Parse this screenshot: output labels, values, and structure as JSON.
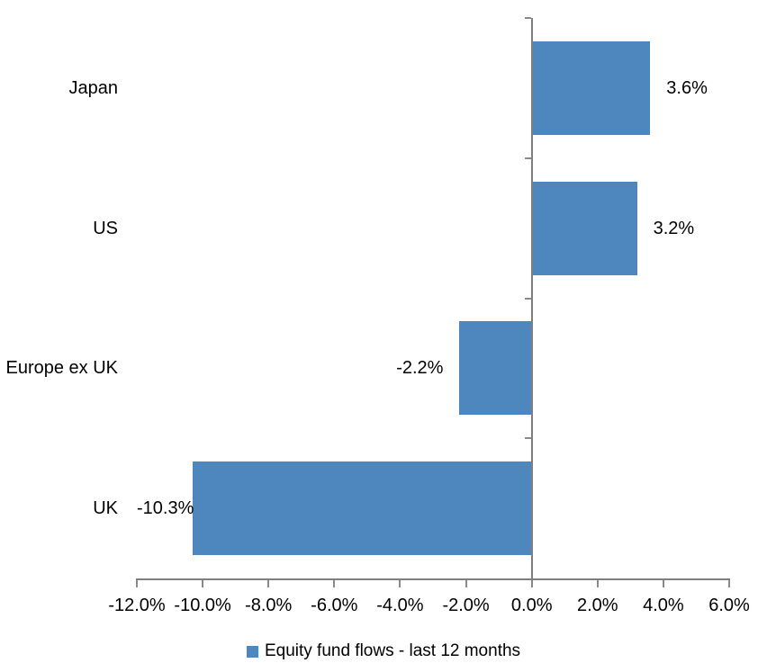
{
  "chart_data": {
    "type": "bar",
    "orientation": "horizontal",
    "title": "",
    "categories": [
      "Japan",
      "US",
      "Europe ex UK",
      "UK"
    ],
    "values": [
      3.6,
      3.2,
      -2.2,
      -10.3
    ],
    "value_labels": [
      "3.6%",
      "3.2%",
      "-2.2%",
      "-10.3%"
    ],
    "series_name": "Equity fund flows - last 12 months",
    "xlabel": "",
    "ylabel": "",
    "xlim": [
      -12,
      6
    ],
    "x_ticks": [
      -12,
      -10,
      -8,
      -6,
      -4,
      -2,
      0,
      2,
      4,
      6
    ],
    "x_tick_labels": [
      "-12.0%",
      "-10.0%",
      "-8.0%",
      "-6.0%",
      "-4.0%",
      "-2.0%",
      "0.0%",
      "2.0%",
      "4.0%",
      "6.0%"
    ],
    "grid": false,
    "legend_position": "bottom-center",
    "bar_color": "#4e87be",
    "axis_color": "#7f7f7f",
    "tick_color": "#8a8a8a",
    "text_color": "#000000"
  }
}
